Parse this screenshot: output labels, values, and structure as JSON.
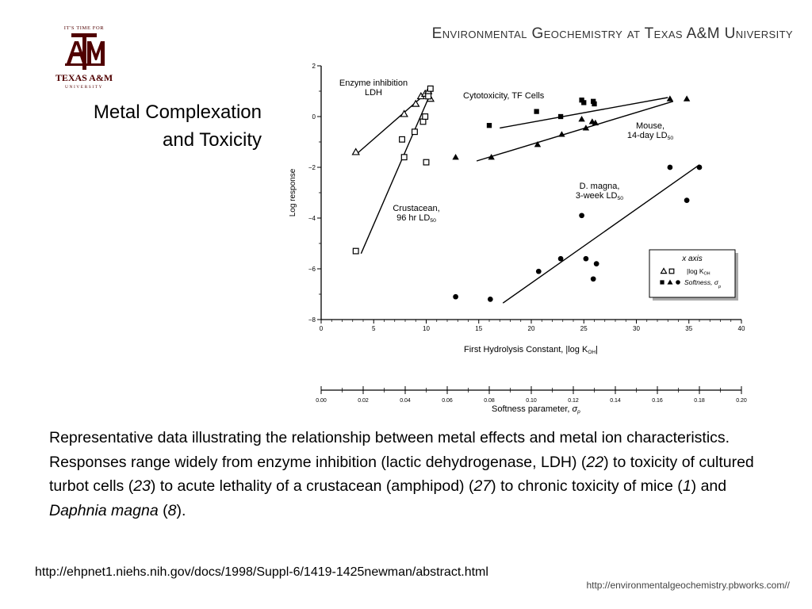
{
  "header": {
    "title": "Environmental Geochemistry at Texas A&M University",
    "logo": {
      "tagline": "IT'S TIME FOR",
      "name": "TEXAS A&M",
      "sub": "UNIVERSITY",
      "color": "#500000"
    }
  },
  "slide": {
    "title_line1": "Metal Complexation",
    "title_line2": "and Toxicity"
  },
  "chart_data": {
    "type": "scatter",
    "ylabel": "Log response",
    "xlabel": "First Hydrolysis Constant,",
    "xlabel_math": "log K",
    "xlabel_sub": "OH",
    "x2label": "Softness parameter,",
    "x2label_symbol": "σ",
    "x2label_sub": "p",
    "xlim": [
      0,
      40
    ],
    "ylim": [
      -8,
      2
    ],
    "x2lim": [
      0,
      0.2
    ],
    "xticks": [
      "0",
      "5",
      "10",
      "15",
      "20",
      "25",
      "30",
      "35",
      "40"
    ],
    "yticks": [
      "2",
      "0",
      "−2",
      "−4",
      "−6",
      "−8"
    ],
    "x2ticks": [
      "0.00",
      "0.02",
      "0.04",
      "0.06",
      "0.08",
      "0.10",
      "0.12",
      "0.14",
      "0.16",
      "0.18",
      "0.20"
    ],
    "series": [
      {
        "name": "Enzyme inhibition LDH",
        "label1": "Enzyme inhibition",
        "label2": "LDH",
        "marker": "open-triangle",
        "x": [
          3.3,
          7.9,
          9.0,
          9.5,
          9.9,
          10.2,
          10.4
        ],
        "y": [
          -1.4,
          0.1,
          0.5,
          0.8,
          0.9,
          1.0,
          0.7
        ],
        "fit": [
          [
            3.3,
            -1.5
          ],
          [
            10.5,
            1.1
          ]
        ]
      },
      {
        "name": "Crustacean, 96 hr LD50",
        "label1": "Crustacean,",
        "label2": "96 hr LD",
        "label2_sub": "50",
        "marker": "open-square",
        "x": [
          3.3,
          7.7,
          7.9,
          8.9,
          9.7,
          9.9,
          10.0,
          10.2,
          10.4
        ],
        "y": [
          -5.3,
          -0.9,
          -1.6,
          -0.6,
          -0.2,
          0.0,
          -1.8,
          0.8,
          1.1
        ],
        "fit": [
          [
            3.8,
            -5.4
          ],
          [
            10.5,
            1.0
          ]
        ]
      },
      {
        "name": "Cytotoxicity, TF Cells",
        "label1": "Cytotoxicity, TF Cells",
        "marker": "filled-square",
        "x": [
          16.0,
          20.5,
          22.8,
          24.8,
          25.0,
          25.9,
          26.0
        ],
        "y": [
          -0.35,
          0.2,
          0.0,
          0.65,
          0.55,
          0.6,
          0.5
        ],
        "fit": [
          [
            17.0,
            -0.45
          ],
          [
            33.0,
            0.75
          ]
        ]
      },
      {
        "name": "Mouse, 14-day LD50",
        "label1": "Mouse,",
        "label2": "14-day LD",
        "label2_sub": "50",
        "marker": "filled-triangle",
        "x": [
          12.8,
          16.2,
          20.6,
          22.9,
          24.8,
          25.2,
          25.8,
          26.1,
          33.2,
          34.8
        ],
        "y": [
          -1.6,
          -1.6,
          -1.1,
          -0.7,
          -0.1,
          -0.45,
          -0.2,
          -0.25,
          0.7,
          0.7
        ],
        "fit": [
          [
            14.8,
            -1.75
          ],
          [
            33.5,
            0.6
          ]
        ]
      },
      {
        "name": "D. magna, 3-week LD50",
        "label1": "D. magna,",
        "label2": "3-week LD",
        "label2_sub": "50",
        "marker": "filled-circle",
        "x": [
          12.8,
          16.1,
          20.7,
          22.8,
          24.8,
          25.2,
          25.9,
          26.2,
          33.2,
          34.8,
          36.0
        ],
        "y": [
          -7.1,
          -7.2,
          -6.1,
          -5.6,
          -3.9,
          -5.6,
          -6.4,
          -5.8,
          -2.0,
          -3.3,
          -2.0
        ],
        "fit": [
          [
            17.3,
            -7.35
          ],
          [
            36.0,
            -1.9
          ]
        ]
      }
    ],
    "legend": {
      "title": "x axis",
      "row1": "|log K",
      "row1_sub": "OH",
      "row2": "Softness,",
      "row2_symbol": "σ",
      "row2_sub": "p",
      "placement": "bottom-right"
    }
  },
  "caption": {
    "part1": "Representative data illustrating the relationship between metal effects and metal ion characteristics. Responses range widely from enzyme inhibition (lactic dehydrogenase, LDH) (",
    "ref1": "22",
    "part2": ") to toxicity of cultured turbot cells (",
    "ref2": "23",
    "part3": ") to acute lethality of a crustacean (amphipod) (",
    "ref3": "27",
    "part4": ") to chronic toxicity of mice (",
    "ref4": "1",
    "part5": ") and ",
    "species": "Daphnia magna",
    "part6": " (",
    "ref5": "8",
    "part7": ")."
  },
  "source_url": "http://ehpnet1.niehs.nih.gov/docs/1998/Suppl-6/1419-1425newman/abstract.html",
  "footer_url": "http://environmentalgeochemistry.pbworks.com//"
}
